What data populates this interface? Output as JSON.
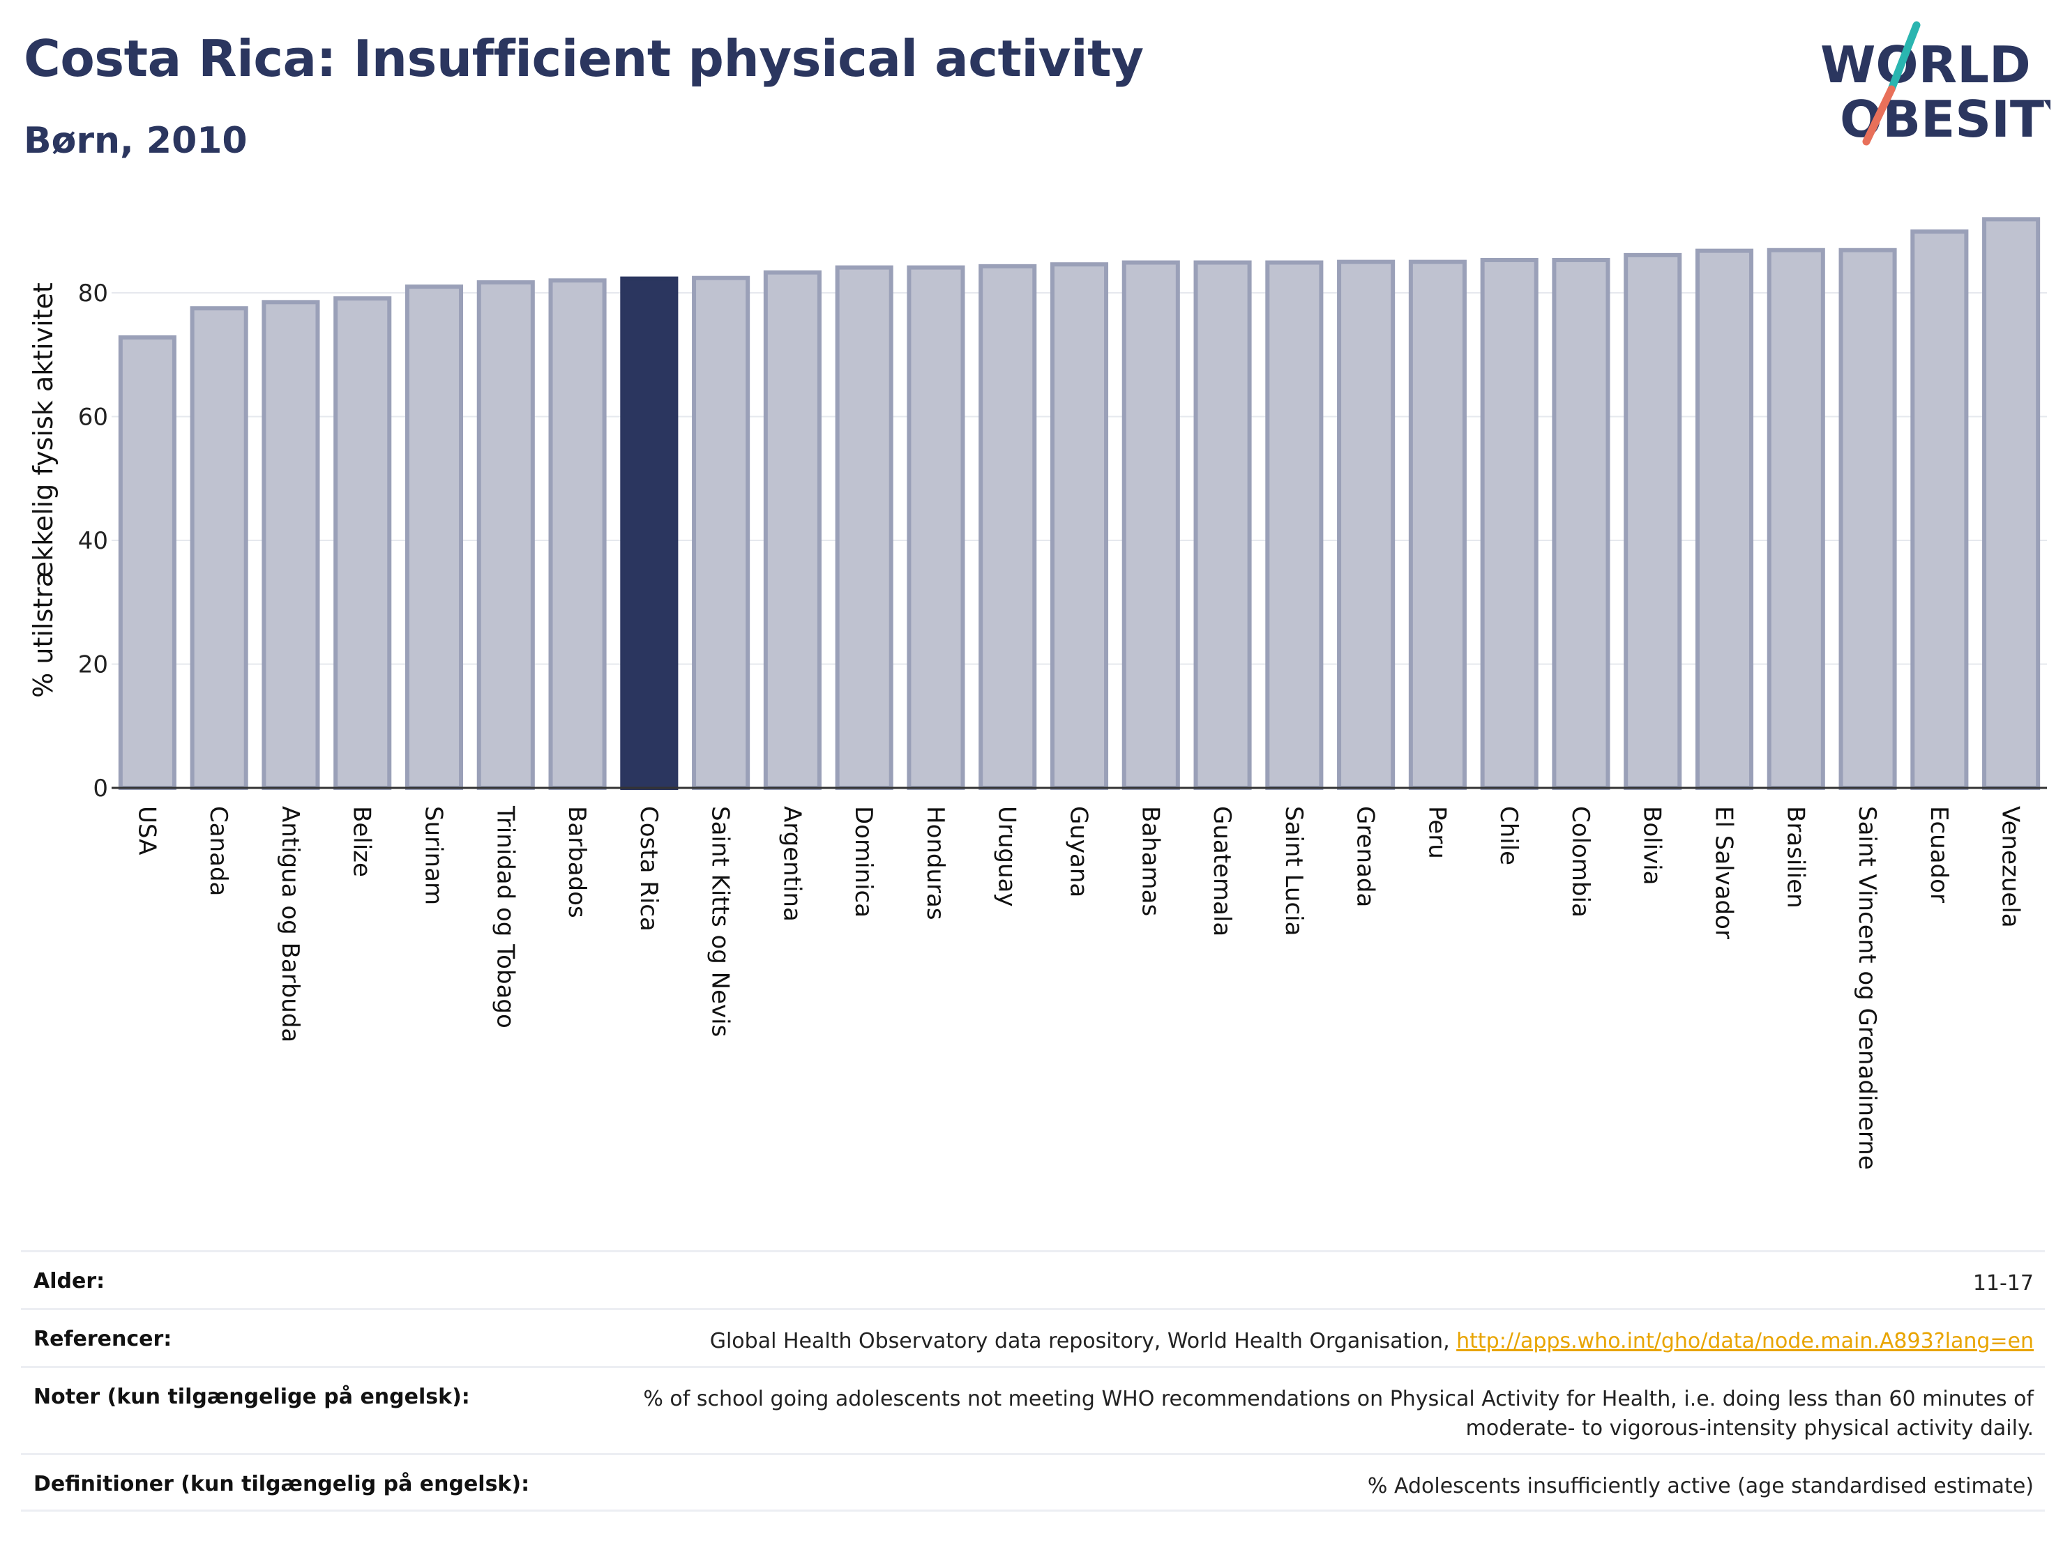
{
  "header": {
    "title": "Costa Rica: Insufficient physical activity",
    "subtitle": "Børn, 2010"
  },
  "logo": {
    "line1": "WORLD",
    "line2": "OBESITY",
    "colors": {
      "text": "#2b365f",
      "slash_top": "#2ab5b0",
      "slash_bottom": "#e8705a"
    }
  },
  "chart_data": {
    "type": "bar",
    "ylabel": "% utilstrækkelig fysisk aktivitet",
    "ylim": [
      0,
      95
    ],
    "yticks": [
      0,
      20,
      40,
      60,
      80
    ],
    "grid": true,
    "highlight": "Costa Rica",
    "colors": {
      "bar": "#bfc2d0",
      "bar_edge": "#9aa0b8",
      "highlight": "#2b365f"
    },
    "categories": [
      "USA",
      "Canada",
      "Antigua og Barbuda",
      "Belize",
      "Surinam",
      "Trinidad og Tobago",
      "Barbados",
      "Costa Rica",
      "Saint Kitts og Nevis",
      "Argentina",
      "Dominica",
      "Honduras",
      "Uruguay",
      "Guyana",
      "Bahamas",
      "Guatemala",
      "Saint Lucia",
      "Grenada",
      "Peru",
      "Chile",
      "Colombia",
      "Bolivia",
      "El Salvador",
      "Brasilien",
      "Saint Vincent og Grenadinerne",
      "Ecuador",
      "Venezuela"
    ],
    "values": [
      72.8,
      77.5,
      78.5,
      79.1,
      81.0,
      81.7,
      82.0,
      82.3,
      82.4,
      83.3,
      84.1,
      84.1,
      84.3,
      84.6,
      84.9,
      84.9,
      84.9,
      85.0,
      85.0,
      85.3,
      85.3,
      86.1,
      86.8,
      86.9,
      86.9,
      89.9,
      91.9
    ]
  },
  "info": {
    "age_label": "Alder:",
    "age_value": "11-17",
    "refs_label": "Referencer:",
    "refs_text": "Global Health Observatory data repository, World Health Organisation, ",
    "refs_link": "http://apps.who.int/gho/data/node.main.A893?lang=en",
    "notes_label": "Noter (kun tilgængelige på engelsk):",
    "notes_value": "% of school going adolescents not meeting WHO recommendations on Physical Activity for Health, i.e. doing less than 60 minutes of moderate- to vigorous-intensity physical activity daily.",
    "defs_label": "Definitioner (kun tilgængelig på engelsk):",
    "defs_value": "% Adolescents insufficiently active (age standardised estimate)"
  }
}
